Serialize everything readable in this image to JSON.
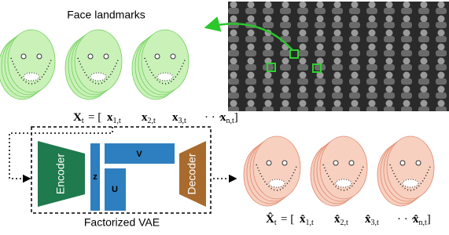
{
  "header": {
    "title": "Face landmarks"
  },
  "input_vector": {
    "symbol": "X",
    "subscript": "t",
    "equals": "= [",
    "items": [
      {
        "symbol": "x",
        "subscript": "1,t"
      },
      {
        "symbol": "x",
        "subscript": "2,t"
      },
      {
        "symbol": "x",
        "subscript": "3,t"
      },
      {
        "symbol": "· · ·"
      },
      {
        "symbol": "x",
        "subscript": "n,t"
      }
    ],
    "close": "]"
  },
  "model": {
    "encoder": "Encoder",
    "latent": "z",
    "factor_v": "V",
    "factor_u": "U",
    "decoder": "Decoder",
    "caption": "Factorized VAE"
  },
  "output_vector": {
    "symbol": "X̂",
    "subscript": "t",
    "equals": "= [",
    "items": [
      {
        "symbol": "x̂",
        "subscript": "1,t"
      },
      {
        "symbol": "x̂",
        "subscript": "2,t"
      },
      {
        "symbol": "x̂",
        "subscript": "3,t"
      },
      {
        "symbol": "· · ·"
      },
      {
        "symbol": "x̂",
        "subscript": "n,t"
      }
    ],
    "close": "]"
  }
}
